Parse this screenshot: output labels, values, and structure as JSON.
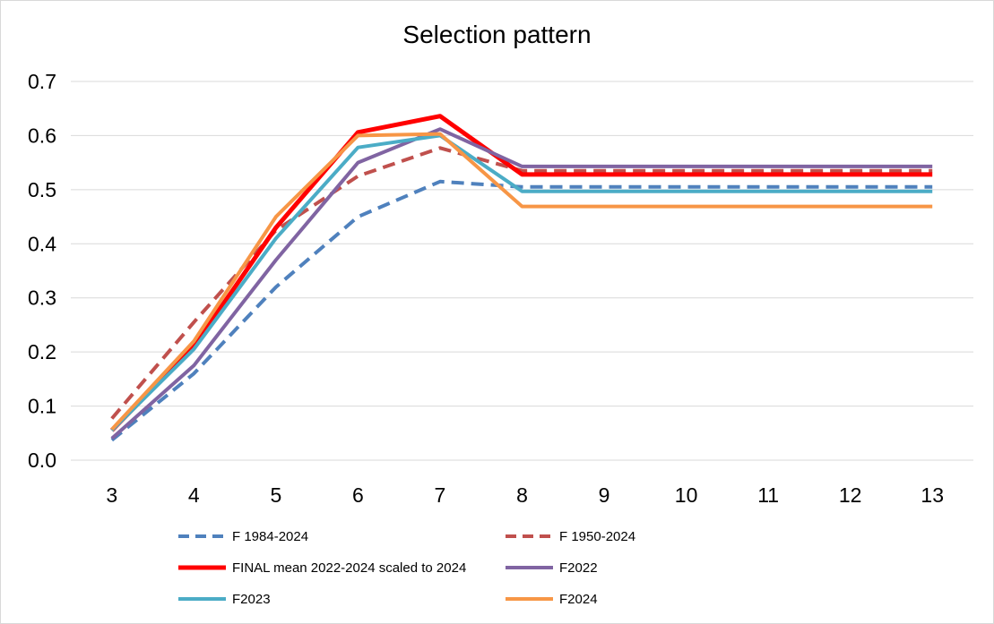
{
  "chart_data": {
    "type": "line",
    "title": "Selection pattern",
    "xlabel": "",
    "ylabel": "",
    "x": [
      3,
      4,
      5,
      6,
      7,
      8,
      9,
      10,
      11,
      12,
      13
    ],
    "ylim": [
      0,
      0.7
    ],
    "y_ticks": [
      "0.0",
      "0.1",
      "0.2",
      "0.3",
      "0.4",
      "0.5",
      "0.6",
      "0.7"
    ],
    "grid": true,
    "legend_position": "bottom",
    "series": [
      {
        "name": "F 1984-2024",
        "color": "#4f81bd",
        "dash": "dashed",
        "width": 4,
        "values": [
          0.037,
          0.16,
          0.32,
          0.45,
          0.515,
          0.505,
          0.505,
          0.505,
          0.505,
          0.505,
          0.505
        ]
      },
      {
        "name": "F 1950-2024",
        "color": "#c0504d",
        "dash": "dashed",
        "width": 4,
        "values": [
          0.077,
          0.255,
          0.425,
          0.525,
          0.577,
          0.535,
          0.535,
          0.535,
          0.535,
          0.535,
          0.535
        ]
      },
      {
        "name": "FINAL mean 2022-2024 scaled to 2024",
        "color": "#ff0000",
        "dash": "solid",
        "width": 5,
        "values": [
          0.055,
          0.21,
          0.43,
          0.606,
          0.636,
          0.528,
          0.528,
          0.528,
          0.528,
          0.528,
          0.528
        ]
      },
      {
        "name": "F2022",
        "color": "#8064a2",
        "dash": "solid",
        "width": 4,
        "values": [
          0.04,
          0.175,
          0.37,
          0.55,
          0.612,
          0.543,
          0.543,
          0.543,
          0.543,
          0.543,
          0.543
        ]
      },
      {
        "name": "F2023",
        "color": "#4bacc6",
        "dash": "solid",
        "width": 4,
        "values": [
          0.055,
          0.205,
          0.41,
          0.578,
          0.6,
          0.497,
          0.497,
          0.497,
          0.497,
          0.497,
          0.497
        ]
      },
      {
        "name": "F2024",
        "color": "#f79646",
        "dash": "solid",
        "width": 4,
        "values": [
          0.057,
          0.22,
          0.45,
          0.6,
          0.603,
          0.469,
          0.469,
          0.469,
          0.469,
          0.469,
          0.469
        ]
      }
    ]
  }
}
